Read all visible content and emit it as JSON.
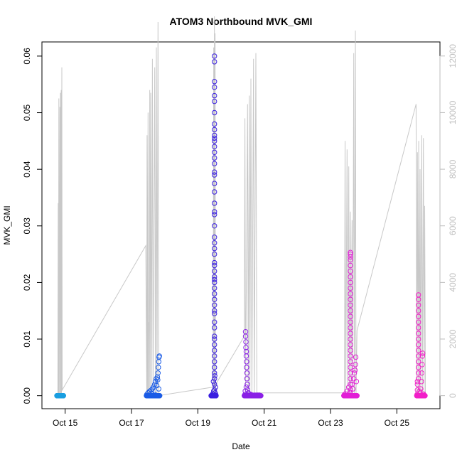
{
  "chart_data": {
    "type": "scatter",
    "title": "ATOM3 Northbound MVK_GMI",
    "xlabel": "Date",
    "ylabel": "MVK_GMI",
    "x_tick_labels": [
      "Oct 15",
      "Oct 17",
      "Oct 19",
      "Oct 21",
      "Oct 23",
      "Oct 25"
    ],
    "x_tick_days": [
      15,
      17,
      19,
      21,
      23,
      25
    ],
    "xlim_days": [
      14.3,
      26.3
    ],
    "ylim": [
      -0.0023,
      0.0625
    ],
    "y_ticks": [
      0.0,
      0.01,
      0.02,
      0.03,
      0.04,
      0.05,
      0.06
    ],
    "y_tick_labels": [
      "0.00",
      "0.01",
      "0.02",
      "0.03",
      "0.04",
      "0.05",
      "0.06"
    ],
    "y2_ticks": [
      0,
      2000,
      4000,
      6000,
      8000,
      10000,
      12000
    ],
    "y2_tick_labels": [
      "0",
      "2000",
      "4000",
      "6000",
      "8000",
      "10000",
      "12000"
    ],
    "y2lim": [
      -461,
      12497
    ],
    "grid": false,
    "legend": "none",
    "colors": {
      "flight1": "#1a9ee0",
      "flight2": "#1b5ce6",
      "flight3": "#3a1fe0",
      "flight4": "#8a1fe6",
      "flight5": "#e21fd6",
      "flight6": "#f21fc8",
      "altitude_line": "#c8c8c8",
      "right_axis": "#bdbdbd"
    },
    "series": [
      {
        "color": "#1a9ee0",
        "day_range": [
          14.75,
          14.95
        ],
        "points": [
          [
            14.76,
            0
          ],
          [
            14.78,
            0
          ],
          [
            14.8,
            0
          ],
          [
            14.82,
            0
          ],
          [
            14.84,
            0
          ],
          [
            14.86,
            0
          ],
          [
            14.88,
            0
          ],
          [
            14.9,
            0
          ],
          [
            14.92,
            0
          ],
          [
            14.94,
            0
          ]
        ]
      },
      {
        "color": "#1b5ce6",
        "day_range": [
          17.45,
          17.85
        ],
        "points": [
          [
            17.46,
            0.0002
          ],
          [
            17.5,
            0.0005
          ],
          [
            17.55,
            0.0008
          ],
          [
            17.6,
            0.001
          ],
          [
            17.63,
            0.0012
          ],
          [
            17.66,
            0.0015
          ],
          [
            17.7,
            0.002
          ],
          [
            17.72,
            0.0025
          ],
          [
            17.75,
            0.003
          ],
          [
            17.78,
            0.0033
          ],
          [
            17.8,
            0.004
          ],
          [
            17.81,
            0.005
          ],
          [
            17.82,
            0.006
          ],
          [
            17.83,
            0.0068
          ],
          [
            17.84,
            0.007
          ],
          [
            17.7,
            0.0002
          ],
          [
            17.6,
            0.0004
          ],
          [
            17.76,
            0.0018
          ],
          [
            17.79,
            0.0028
          ],
          [
            17.82,
            0.0012
          ]
        ]
      },
      {
        "color": "#3a1fe0",
        "day_range": [
          19.4,
          19.55
        ],
        "points": [
          [
            19.5,
            0.06
          ],
          [
            19.5,
            0.059
          ],
          [
            19.5,
            0.0555
          ],
          [
            19.5,
            0.0545
          ],
          [
            19.5,
            0.053
          ],
          [
            19.5,
            0.052
          ],
          [
            19.5,
            0.05
          ],
          [
            19.5,
            0.048
          ],
          [
            19.5,
            0.047
          ],
          [
            19.5,
            0.046
          ],
          [
            19.5,
            0.0455
          ],
          [
            19.5,
            0.045
          ],
          [
            19.5,
            0.044
          ],
          [
            19.5,
            0.043
          ],
          [
            19.5,
            0.042
          ],
          [
            19.5,
            0.041
          ],
          [
            19.5,
            0.0395
          ],
          [
            19.5,
            0.039
          ],
          [
            19.5,
            0.0375
          ],
          [
            19.5,
            0.036
          ],
          [
            19.5,
            0.034
          ],
          [
            19.5,
            0.0325
          ],
          [
            19.5,
            0.032
          ],
          [
            19.5,
            0.03
          ],
          [
            19.5,
            0.028
          ],
          [
            19.5,
            0.027
          ],
          [
            19.5,
            0.026
          ],
          [
            19.5,
            0.025
          ],
          [
            19.5,
            0.0235
          ],
          [
            19.5,
            0.023
          ],
          [
            19.5,
            0.022
          ],
          [
            19.5,
            0.021
          ],
          [
            19.5,
            0.0205
          ],
          [
            19.5,
            0.02
          ],
          [
            19.5,
            0.019
          ],
          [
            19.5,
            0.018
          ],
          [
            19.5,
            0.017
          ],
          [
            19.5,
            0.016
          ],
          [
            19.5,
            0.015
          ],
          [
            19.5,
            0.0145
          ],
          [
            19.5,
            0.013
          ],
          [
            19.5,
            0.012
          ],
          [
            19.5,
            0.0105
          ],
          [
            19.5,
            0.01
          ],
          [
            19.5,
            0.009
          ],
          [
            19.5,
            0.008
          ],
          [
            19.5,
            0.007
          ],
          [
            19.5,
            0.006
          ],
          [
            19.5,
            0.005
          ],
          [
            19.5,
            0.004
          ],
          [
            19.5,
            0.003
          ],
          [
            19.5,
            0.002
          ],
          [
            19.5,
            0.001
          ],
          [
            19.5,
            0.0
          ],
          [
            19.42,
            0.0001
          ],
          [
            19.45,
            0.0003
          ],
          [
            19.48,
            0.0008
          ],
          [
            19.52,
            0.0005
          ],
          [
            19.54,
            0.0002
          ],
          [
            19.53,
            0.0015
          ],
          [
            19.47,
            0.0025
          ],
          [
            19.51,
            0.0035
          ]
        ]
      },
      {
        "color": "#8a1fe6",
        "day_range": [
          20.4,
          20.9
        ],
        "points": [
          [
            20.44,
            0.0113
          ],
          [
            20.44,
            0.0105
          ],
          [
            20.45,
            0.0095
          ],
          [
            20.45,
            0.0085
          ],
          [
            20.46,
            0.0078
          ],
          [
            20.46,
            0.007
          ],
          [
            20.47,
            0.006
          ],
          [
            20.47,
            0.005
          ],
          [
            20.48,
            0.004
          ],
          [
            20.48,
            0.003
          ],
          [
            20.49,
            0.002
          ],
          [
            20.5,
            0.001
          ],
          [
            20.52,
            0.0005
          ],
          [
            20.55,
            0.0003
          ],
          [
            20.6,
            0.0002
          ],
          [
            20.65,
            0.0001
          ],
          [
            20.7,
            0.0001
          ],
          [
            20.75,
            0.0001
          ],
          [
            20.8,
            0.0001
          ],
          [
            20.85,
            0.0001
          ],
          [
            20.42,
            0.0002
          ],
          [
            20.43,
            0.0008
          ],
          [
            20.46,
            0.0015
          ]
        ]
      },
      {
        "color": "#e21fd6",
        "day_range": [
          23.4,
          23.8
        ],
        "points": [
          [
            23.6,
            0.0253
          ],
          [
            23.6,
            0.025
          ],
          [
            23.6,
            0.0245
          ],
          [
            23.6,
            0.024
          ],
          [
            23.6,
            0.023
          ],
          [
            23.6,
            0.022
          ],
          [
            23.6,
            0.021
          ],
          [
            23.6,
            0.02
          ],
          [
            23.6,
            0.019
          ],
          [
            23.6,
            0.018
          ],
          [
            23.6,
            0.017
          ],
          [
            23.6,
            0.016
          ],
          [
            23.6,
            0.015
          ],
          [
            23.6,
            0.014
          ],
          [
            23.6,
            0.013
          ],
          [
            23.6,
            0.012
          ],
          [
            23.6,
            0.011
          ],
          [
            23.6,
            0.01
          ],
          [
            23.6,
            0.009
          ],
          [
            23.6,
            0.008
          ],
          [
            23.6,
            0.007
          ],
          [
            23.6,
            0.006
          ],
          [
            23.6,
            0.005
          ],
          [
            23.6,
            0.004
          ],
          [
            23.6,
            0.003
          ],
          [
            23.6,
            0.002
          ],
          [
            23.6,
            0.001
          ],
          [
            23.45,
            0.0003
          ],
          [
            23.5,
            0.0008
          ],
          [
            23.55,
            0.0015
          ],
          [
            23.65,
            0.002
          ],
          [
            23.7,
            0.003
          ],
          [
            23.72,
            0.004
          ],
          [
            23.75,
            0.0055
          ],
          [
            23.76,
            0.0068
          ],
          [
            23.78,
            0.0025
          ],
          [
            23.42,
            0.0002
          ],
          [
            23.58,
            0.0005
          ],
          [
            23.68,
            0.0012
          ],
          [
            23.74,
            0.0045
          ]
        ]
      },
      {
        "color": "#f21fc8",
        "day_range": [
          25.6,
          25.85
        ],
        "points": [
          [
            25.65,
            0.0178
          ],
          [
            25.65,
            0.017
          ],
          [
            25.65,
            0.016
          ],
          [
            25.65,
            0.015
          ],
          [
            25.65,
            0.014
          ],
          [
            25.65,
            0.013
          ],
          [
            25.65,
            0.012
          ],
          [
            25.65,
            0.011
          ],
          [
            25.65,
            0.01
          ],
          [
            25.65,
            0.009
          ],
          [
            25.65,
            0.008
          ],
          [
            25.65,
            0.007
          ],
          [
            25.65,
            0.006
          ],
          [
            25.65,
            0.005
          ],
          [
            25.65,
            0.004
          ],
          [
            25.65,
            0.003
          ],
          [
            25.62,
            0.0025
          ],
          [
            25.62,
            0.002
          ],
          [
            25.62,
            0.001
          ],
          [
            25.7,
            0.0005
          ],
          [
            25.72,
            0.0012
          ],
          [
            25.74,
            0.0025
          ],
          [
            25.75,
            0.004
          ],
          [
            25.76,
            0.0055
          ],
          [
            25.77,
            0.007
          ],
          [
            25.78,
            0.0075
          ],
          [
            25.8,
            0.0003
          ],
          [
            25.82,
            0.0001
          ],
          [
            25.61,
            0.0002
          ],
          [
            25.68,
            0.0008
          ]
        ]
      }
    ],
    "altitude_line": {
      "y_axis": "right",
      "points": [
        [
          14.78,
          0
        ],
        [
          14.79,
          6800
        ],
        [
          14.8,
          0
        ],
        [
          14.81,
          10500
        ],
        [
          14.82,
          0
        ],
        [
          14.84,
          10200
        ],
        [
          14.85,
          0
        ],
        [
          14.86,
          10700
        ],
        [
          14.87,
          0
        ],
        [
          14.88,
          10800
        ],
        [
          14.89,
          0
        ],
        [
          14.9,
          11600
        ],
        [
          14.91,
          200
        ],
        [
          17.43,
          5300
        ],
        [
          17.46,
          0
        ],
        [
          17.47,
          9200
        ],
        [
          17.48,
          0
        ],
        [
          17.5,
          10000
        ],
        [
          17.51,
          0
        ],
        [
          17.52,
          2600
        ],
        [
          17.53,
          0
        ],
        [
          17.55,
          10800
        ],
        [
          17.56,
          0
        ],
        [
          17.58,
          10700
        ],
        [
          17.6,
          0
        ],
        [
          17.63,
          11900
        ],
        [
          17.65,
          0
        ],
        [
          17.7,
          11600
        ],
        [
          17.72,
          0
        ],
        [
          17.75,
          12300
        ],
        [
          17.77,
          0
        ],
        [
          17.8,
          13200
        ],
        [
          17.82,
          0
        ],
        [
          19.45,
          300
        ],
        [
          19.46,
          0
        ],
        [
          19.48,
          12300
        ],
        [
          19.49,
          0
        ],
        [
          19.5,
          13400
        ],
        [
          19.51,
          0
        ],
        [
          19.52,
          12800
        ],
        [
          19.53,
          0
        ],
        [
          19.54,
          400
        ],
        [
          20.4,
          2100
        ],
        [
          20.42,
          9800
        ],
        [
          20.44,
          0
        ],
        [
          20.5,
          10300
        ],
        [
          20.52,
          0
        ],
        [
          20.55,
          10600
        ],
        [
          20.57,
          0
        ],
        [
          20.6,
          11200
        ],
        [
          20.63,
          0
        ],
        [
          20.68,
          11900
        ],
        [
          20.7,
          0
        ],
        [
          20.75,
          12100
        ],
        [
          20.78,
          0
        ],
        [
          20.8,
          100
        ],
        [
          23.42,
          100
        ],
        [
          23.44,
          9000
        ],
        [
          23.46,
          0
        ],
        [
          23.5,
          8700
        ],
        [
          23.52,
          0
        ],
        [
          23.55,
          8100
        ],
        [
          23.57,
          0
        ],
        [
          23.6,
          6500
        ],
        [
          23.62,
          0
        ],
        [
          23.65,
          6200
        ],
        [
          23.67,
          0
        ],
        [
          23.7,
          12100
        ],
        [
          23.72,
          0
        ],
        [
          23.75,
          12900
        ],
        [
          23.77,
          0
        ],
        [
          23.8,
          2300
        ],
        [
          25.58,
          10300
        ],
        [
          25.6,
          0
        ],
        [
          25.62,
          8600
        ],
        [
          25.64,
          0
        ],
        [
          25.66,
          9000
        ],
        [
          25.68,
          0
        ],
        [
          25.7,
          8000
        ],
        [
          25.72,
          0
        ],
        [
          25.75,
          9200
        ],
        [
          25.77,
          0
        ],
        [
          25.8,
          9100
        ],
        [
          25.82,
          0
        ],
        [
          25.84,
          6700
        ],
        [
          25.86,
          0
        ]
      ]
    }
  }
}
